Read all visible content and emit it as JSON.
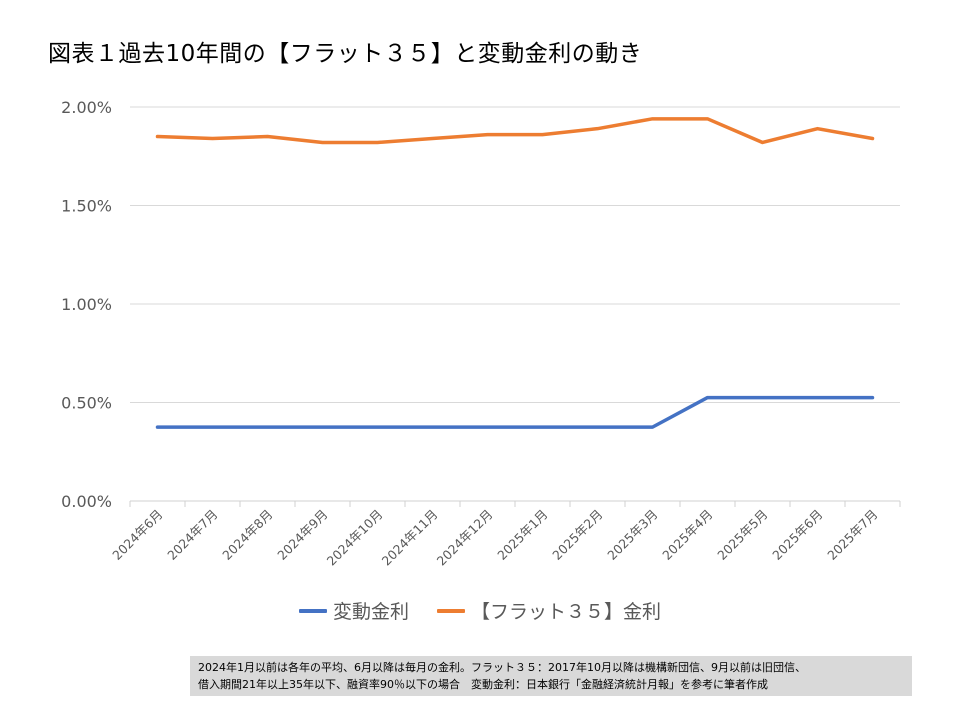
{
  "title": "図表１過去10年間の【フラット３５】と変動金利の動き",
  "chart_data": {
    "type": "line",
    "categories": [
      "2024年6月",
      "2024年7月",
      "2024年8月",
      "2024年9月",
      "2024年10月",
      "2024年11月",
      "2024年12月",
      "2025年1月",
      "2025年2月",
      "2025年3月",
      "2025年4月",
      "2025年5月",
      "2025年6月",
      "2025年7月"
    ],
    "series": [
      {
        "name": "変動金利",
        "color": "#4472c4",
        "values": [
          0.375,
          0.375,
          0.375,
          0.375,
          0.375,
          0.375,
          0.375,
          0.375,
          0.375,
          0.375,
          0.525,
          0.525,
          0.525,
          0.525
        ]
      },
      {
        "name": "【フラット３５】金利",
        "color": "#ed7d31",
        "values": [
          1.85,
          1.84,
          1.85,
          1.82,
          1.82,
          1.84,
          1.86,
          1.86,
          1.89,
          1.94,
          1.94,
          1.82,
          1.89,
          1.84
        ]
      }
    ],
    "y_ticks": [
      "2.00%",
      "1.50%",
      "1.00%",
      "0.50%",
      "0.00%"
    ],
    "y_tick_values": [
      2.0,
      1.5,
      1.0,
      0.5,
      0.0
    ],
    "ylim": [
      0,
      2.0
    ],
    "grid": true,
    "legend_position": "bottom",
    "xlabel": "",
    "ylabel": ""
  },
  "legend": {
    "items": [
      "変動金利",
      "【フラット３５】金利"
    ]
  },
  "footnote": {
    "line1": "2024年1月以前は各年の平均、6月以降は毎月の金利。フラット３５：2017年10月以降は機構新団信、9月以前は旧団信、",
    "line2": "借入期間21年以上35年以下、融資率90％以下の場合　変動金利：日本銀行「金融経済統計月報」を参考に筆者作成"
  }
}
